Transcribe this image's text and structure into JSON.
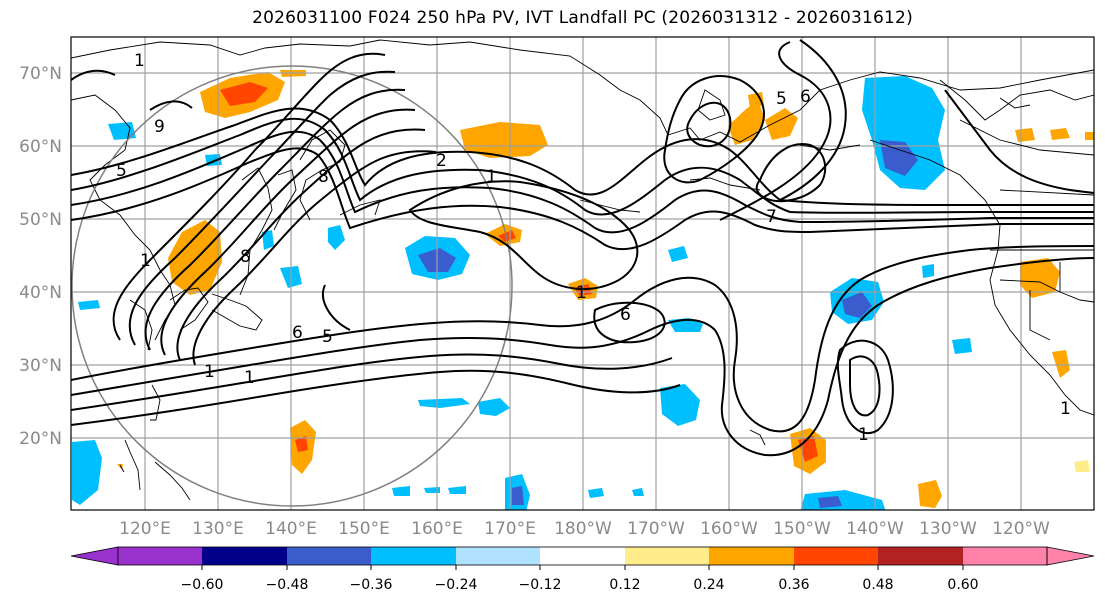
{
  "title": "2026031100 F024 250 hPa PV, IVT Landfall PC (2026031312 - 2026031612)",
  "map": {
    "lat_ticks": [
      "70°N",
      "60°N",
      "50°N",
      "40°N",
      "30°N",
      "20°N"
    ],
    "lon_ticks": [
      "120°E",
      "130°E",
      "140°E",
      "150°E",
      "160°E",
      "170°E",
      "180°W",
      "170°W",
      "160°W",
      "150°W",
      "140°W",
      "130°W",
      "120°W"
    ],
    "contour_labels": [
      "1",
      "1",
      "1",
      "1",
      "1",
      "1",
      "2",
      "5",
      "6",
      "6",
      "8",
      "8",
      "9",
      "5",
      "5",
      "6",
      "7",
      "1",
      "1"
    ]
  },
  "colorbar": {
    "tick_labels": [
      "−0.60",
      "−0.48",
      "−0.36",
      "−0.24",
      "−0.12",
      "0.12",
      "0.24",
      "0.36",
      "0.48",
      "0.60"
    ],
    "colors": [
      "#9932cc",
      "#00008b",
      "#3a5ccc",
      "#00bfff",
      "#b0e2ff",
      "#ffffff",
      "#ffec8b",
      "#ffa500",
      "#ff4500",
      "#b22222",
      "#ff82ab"
    ]
  },
  "colors": {
    "contour": "#000000",
    "grid": "#a0a0a0",
    "coast": "#000000",
    "circle": "#808080"
  }
}
